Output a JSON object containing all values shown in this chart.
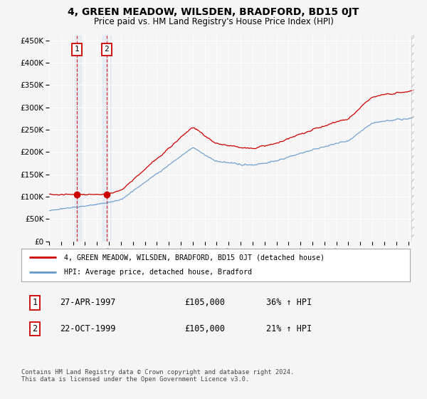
{
  "title": "4, GREEN MEADOW, WILSDEN, BRADFORD, BD15 0JT",
  "subtitle": "Price paid vs. HM Land Registry's House Price Index (HPI)",
  "ylabel_ticks": [
    "£0",
    "£50K",
    "£100K",
    "£150K",
    "£200K",
    "£250K",
    "£300K",
    "£350K",
    "£400K",
    "£450K"
  ],
  "ytick_vals": [
    0,
    50000,
    100000,
    150000,
    200000,
    250000,
    300000,
    350000,
    400000,
    450000
  ],
  "xlim_start": 1995.0,
  "xlim_end": 2025.5,
  "ylim": [
    0,
    460000
  ],
  "background_color": "#f5f5f5",
  "plot_bg_color": "#f5f5f5",
  "grid_color": "#cccccc",
  "legend_label_red": "4, GREEN MEADOW, WILSDEN, BRADFORD, BD15 0JT (detached house)",
  "legend_label_blue": "HPI: Average price, detached house, Bradford",
  "sale1_date": 1997.32,
  "sale1_price": 105000,
  "sale2_date": 1999.81,
  "sale2_price": 105000,
  "footer_text": "Contains HM Land Registry data © Crown copyright and database right 2024.\nThis data is licensed under the Open Government Licence v3.0.",
  "table_row1": [
    "1",
    "27-APR-1997",
    "£105,000",
    "36% ↑ HPI"
  ],
  "table_row2": [
    "2",
    "22-OCT-1999",
    "£105,000",
    "21% ↑ HPI"
  ],
  "red_color": "#cc0000",
  "blue_color": "#6699cc"
}
